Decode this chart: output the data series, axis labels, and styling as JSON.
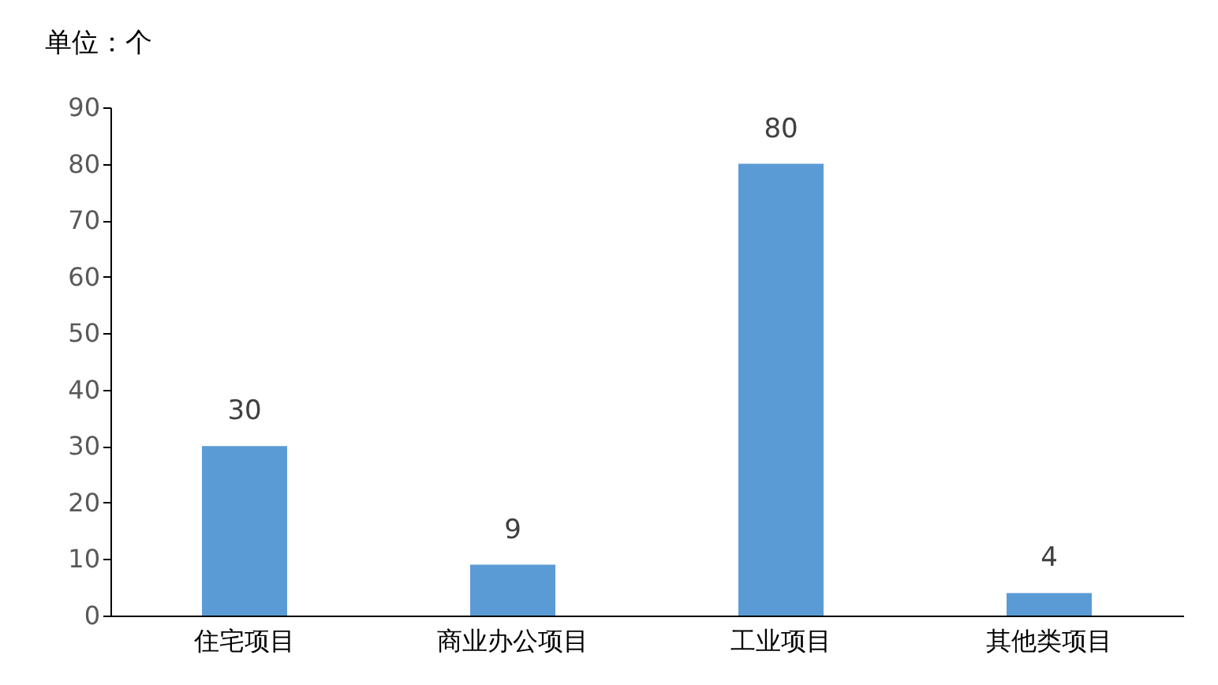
{
  "chart_data": {
    "type": "bar",
    "ylabel": "单位：个",
    "categories": [
      "住宅项目",
      "商业办公项目",
      "工业项目",
      "其他类项目"
    ],
    "values": [
      30,
      9,
      80,
      4
    ],
    "color": "#5b9bd5",
    "ylim": [
      0,
      90
    ],
    "yticks": [
      0,
      10,
      20,
      30,
      40,
      50,
      60,
      70,
      80,
      90
    ],
    "grid": false,
    "data_labels": true
  }
}
